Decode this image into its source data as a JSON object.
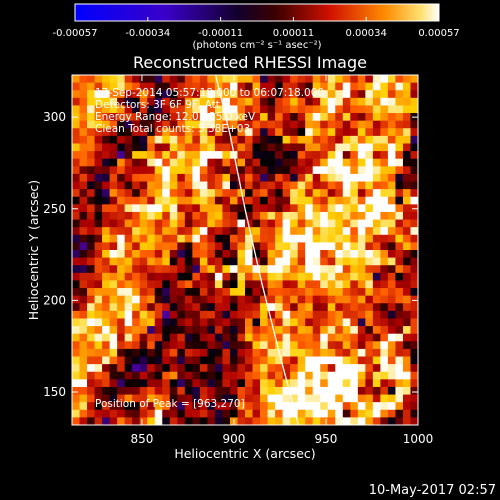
{
  "chart_data": {
    "type": "heatmap",
    "title": "Reconstructed RHESSI Image",
    "xlabel": "Heliocentric X (arcsec)",
    "ylabel": "Heliocentric Y (arcsec)",
    "xlim": [
      812,
      1000
    ],
    "ylim": [
      132,
      323
    ],
    "x_ticks": [
      "850",
      "900",
      "950",
      "1000"
    ],
    "y_ticks": [
      "150",
      "200",
      "250",
      "300"
    ],
    "colorbar": {
      "ticks": [
        "-0.00057",
        "-0.00034",
        "-0.00011",
        "0.00011",
        "0.00034",
        "0.00057"
      ],
      "range": [
        -0.00057,
        0.00057
      ],
      "unit_label": "(photons cm⁻² s⁻¹ asec⁻²)"
    },
    "annotations": [
      "17-Sep-2014 05:57:18.000 to 06:07:18.000",
      "Detectors: 3F 6F 9F, Att 0",
      "Energy Range: 12.0 - 25.0 keV",
      "Clean     Total counts: 5.38E+03"
    ],
    "peak": "Position of Peak = [963,270]",
    "limb_curve": [
      [
        935,
        132
      ],
      [
        925,
        170
      ],
      [
        915,
        210
      ],
      [
        906,
        250
      ],
      [
        898,
        290
      ],
      [
        890,
        323
      ]
    ]
  },
  "footer": {
    "timestamp": "10-May-2017 02:57"
  },
  "colors": {
    "background": "#000000",
    "text": "#ffffff",
    "colormap": [
      "#0000ff",
      "#4b009c",
      "#000000",
      "#b00000",
      "#ff5a00",
      "#ffd000",
      "#ffffff"
    ]
  }
}
